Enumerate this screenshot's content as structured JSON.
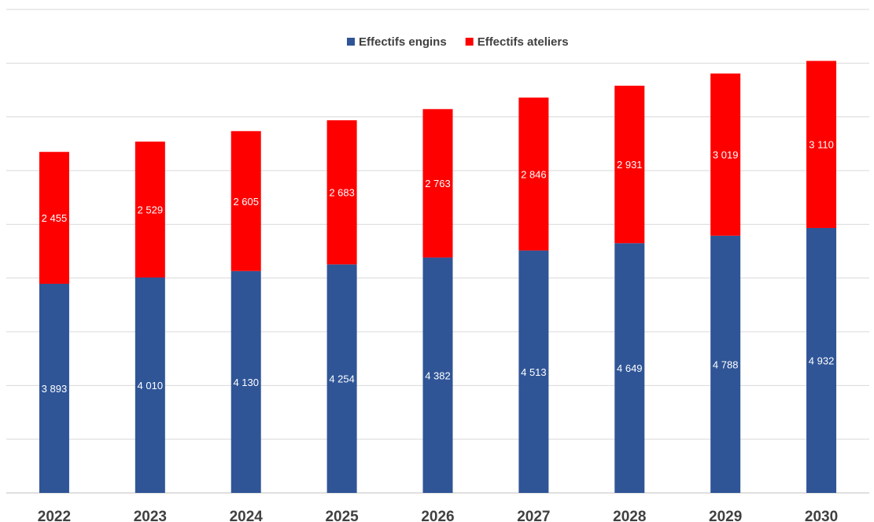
{
  "chart_data": {
    "type": "bar",
    "stacked": true,
    "categories": [
      "2022",
      "2023",
      "2024",
      "2025",
      "2026",
      "2027",
      "2028",
      "2029",
      "2030"
    ],
    "series": [
      {
        "name": "Effectifs engins",
        "color": "#2F5597",
        "values": [
          3893,
          4010,
          4130,
          4254,
          4382,
          4513,
          4649,
          4788,
          4932
        ],
        "labels": [
          "3 893",
          "4 010",
          "4 130",
          "4 254",
          "4 382",
          "4 513",
          "4 649",
          "4 788",
          "4 932"
        ]
      },
      {
        "name": "Effectifs ateliers",
        "color": "#FF0000",
        "values": [
          2455,
          2529,
          2605,
          2683,
          2763,
          2846,
          2931,
          3019,
          3110
        ],
        "labels": [
          "2 455",
          "2 529",
          "2 605",
          "2 683",
          "2 763",
          "2 846",
          "2 931",
          "3 019",
          "3 110"
        ]
      }
    ],
    "ylim": [
      0,
      9000
    ],
    "grid": true,
    "legend_position": "top-center",
    "title": "",
    "xlabel": "",
    "ylabel": ""
  }
}
